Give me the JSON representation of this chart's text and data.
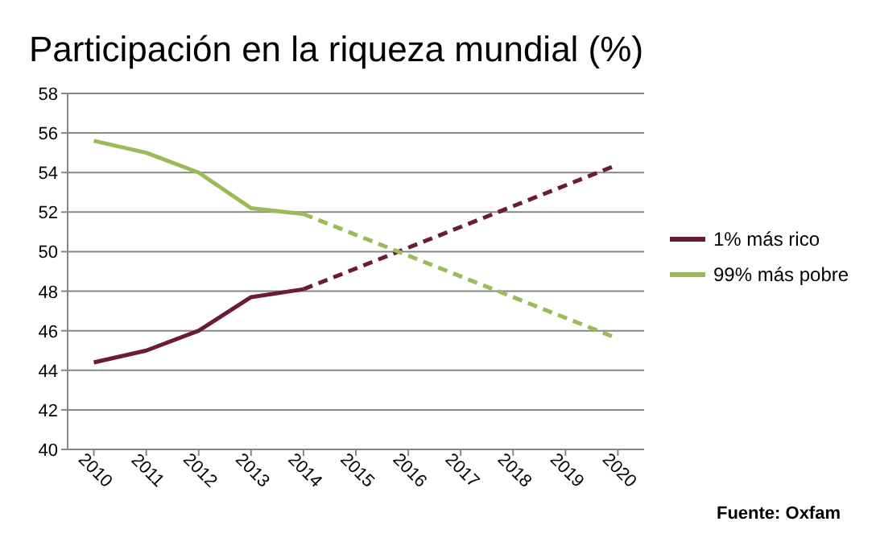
{
  "chart_data": {
    "type": "line",
    "title": "Participación en la riqueza mundial (%)",
    "xlim": [
      2009.5,
      2020.5
    ],
    "xticks": [
      2010,
      2011,
      2012,
      2013,
      2014,
      2015,
      2016,
      2017,
      2018,
      2019,
      2020
    ],
    "ylim": [
      40,
      58
    ],
    "yticks": [
      40,
      42,
      44,
      46,
      48,
      50,
      52,
      54,
      56,
      58
    ],
    "grid": "y",
    "legend": "right",
    "series": [
      {
        "name": "1% más rico",
        "color": "#6b1a3c",
        "x": [
          2010,
          2011,
          2012,
          2013,
          2014
        ],
        "values": [
          44.4,
          45.0,
          46.0,
          47.7,
          48.1
        ]
      },
      {
        "name": "99% más pobre",
        "color": "#9bbb59",
        "x": [
          2010,
          2011,
          2012,
          2013,
          2014
        ],
        "values": [
          55.6,
          55.0,
          54.0,
          52.2,
          51.9
        ]
      },
      {
        "color": "#6b1a3c",
        "x": [
          2014,
          2020
        ],
        "values": [
          48.1,
          54.4
        ],
        "line_style": "dashed"
      },
      {
        "color": "#9bbb59",
        "x": [
          2014,
          2020
        ],
        "values": [
          51.9,
          45.6
        ],
        "line_style": "dashed"
      }
    ],
    "annotations": [
      "Fuente: Oxfam"
    ]
  }
}
